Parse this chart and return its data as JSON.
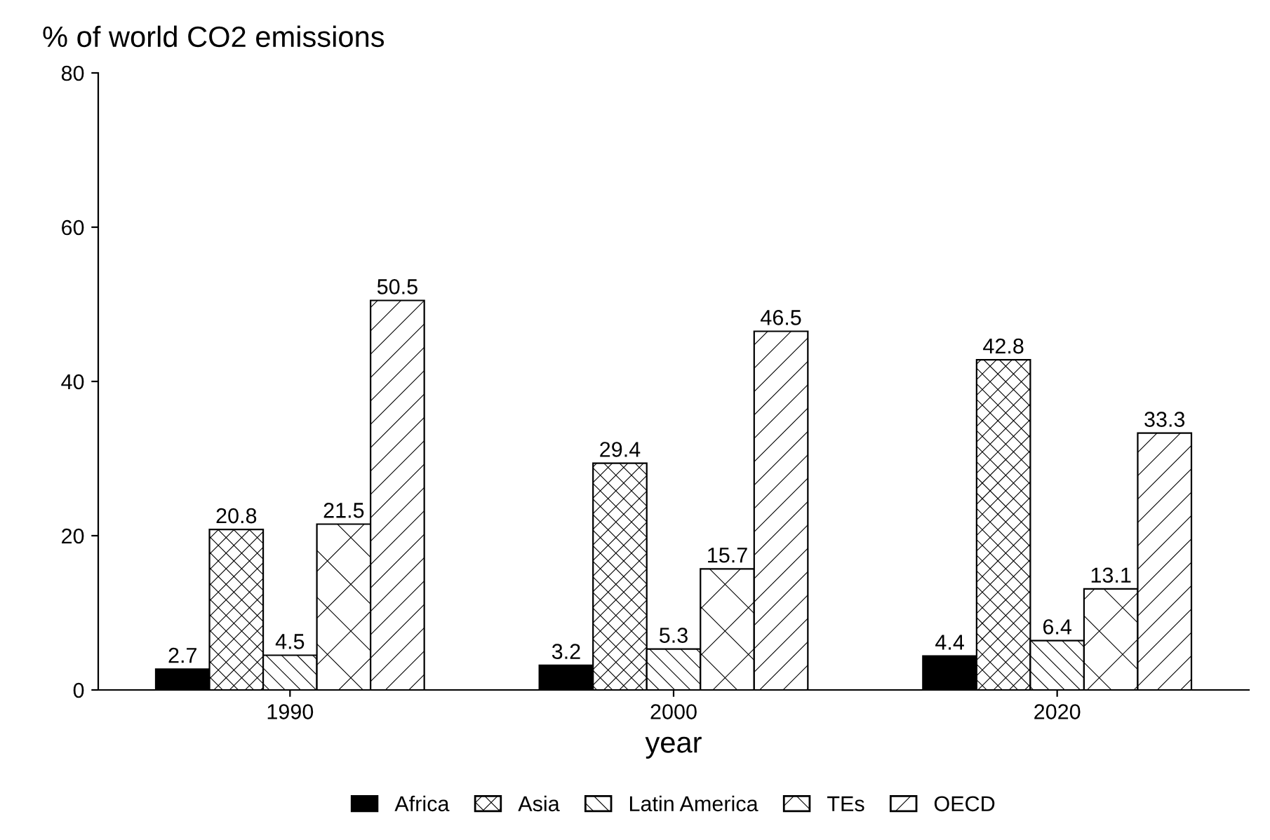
{
  "chart_data": {
    "type": "bar",
    "ylabel": "% of world CO2 emissions",
    "xlabel": "year",
    "categories": [
      "1990",
      "2000",
      "2020"
    ],
    "series": [
      {
        "name": "Africa",
        "color": "#000000",
        "values": [
          2.7,
          3.2,
          4.4
        ]
      },
      {
        "name": "Asia",
        "color": "#000000",
        "values": [
          20.8,
          29.4,
          42.8
        ]
      },
      {
        "name": "Latin America",
        "color": "#000000",
        "values": [
          4.5,
          5.3,
          6.4
        ]
      },
      {
        "name": "TEs",
        "color": "#000000",
        "values": [
          21.5,
          15.7,
          13.1
        ]
      },
      {
        "name": "OECD",
        "color": "#000000",
        "values": [
          50.5,
          46.5,
          33.3
        ]
      }
    ],
    "ylim": [
      0,
      80
    ],
    "yticks": [
      0,
      20,
      40,
      60,
      80
    ],
    "data_labels": true,
    "legend": "bottom",
    "grid": false
  }
}
